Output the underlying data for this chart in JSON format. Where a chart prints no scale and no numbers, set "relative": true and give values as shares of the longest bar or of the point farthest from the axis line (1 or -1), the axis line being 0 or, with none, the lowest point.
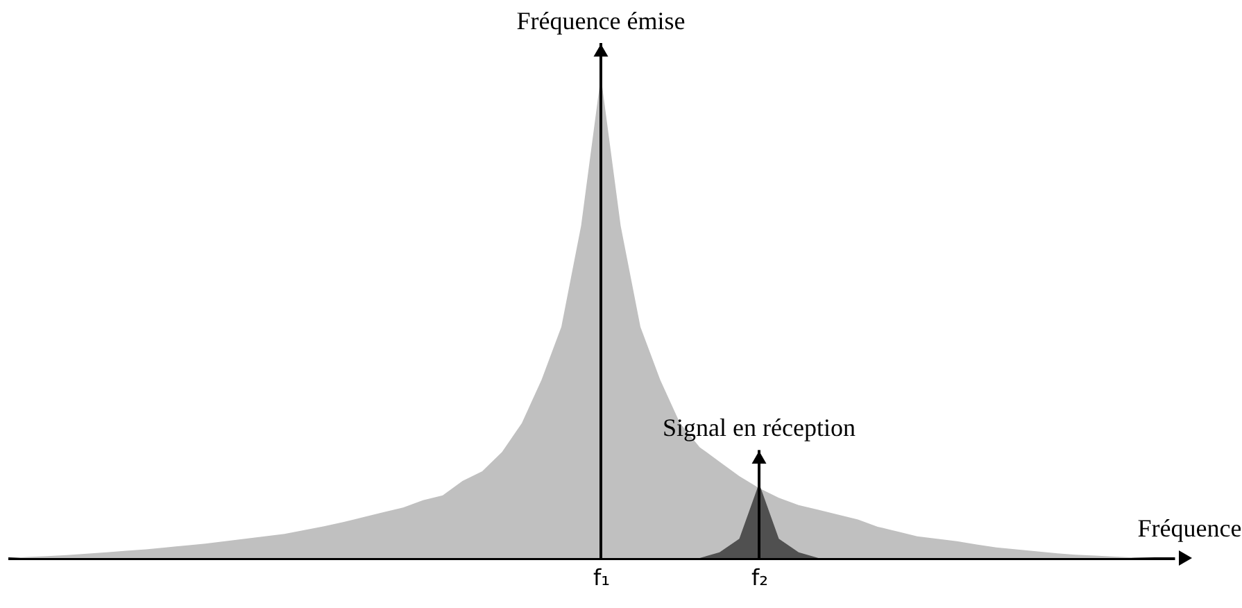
{
  "chart_data": {
    "type": "area",
    "relative": true,
    "xlabel": "Fréquence",
    "categories": [
      null,
      null,
      null,
      null,
      null,
      null,
      null,
      null,
      null,
      null,
      null,
      null,
      null,
      null,
      null,
      null,
      null,
      null,
      null,
      null,
      null,
      null,
      null,
      null,
      null,
      null,
      null,
      null,
      null,
      null,
      "f₁",
      null,
      null,
      null,
      null,
      null,
      null,
      null,
      "f₂",
      null,
      null,
      null,
      null,
      null,
      null,
      null,
      null,
      null,
      null,
      null,
      null,
      null,
      null,
      null,
      null,
      null,
      null,
      null,
      null,
      null
    ],
    "series": [
      {
        "color": "#c0c0c0",
        "values": [
          0,
          0.002,
          0.004,
          0.006,
          0.009,
          0.012,
          0.015,
          0.018,
          0.022,
          0.026,
          0.03,
          0.035,
          0.04,
          0.045,
          0.05,
          0.058,
          0.066,
          0.075,
          0.085,
          0.095,
          0.105,
          0.12,
          0.13,
          0.16,
          0.18,
          0.22,
          0.28,
          0.37,
          0.48,
          0.69,
          1,
          0.69,
          0.48,
          0.37,
          0.28,
          0.23,
          0.2,
          0.17,
          0.145,
          0.125,
          0.11,
          0.1,
          0.09,
          0.08,
          0.065,
          0.055,
          0.045,
          0.04,
          0.035,
          0.028,
          0.022,
          0.018,
          0.014,
          0.01,
          0.007,
          0.005,
          0.003,
          0.001,
          0,
          0
        ]
      },
      {
        "color": "#505050",
        "values": [
          null,
          null,
          null,
          null,
          null,
          null,
          null,
          null,
          null,
          null,
          null,
          null,
          null,
          null,
          null,
          null,
          null,
          null,
          null,
          null,
          null,
          null,
          null,
          null,
          null,
          null,
          null,
          null,
          null,
          null,
          null,
          null,
          null,
          null,
          null,
          0,
          0.012,
          0.04,
          0.155,
          0.04,
          0.012,
          0,
          null,
          null,
          null,
          null,
          null,
          null,
          null,
          null,
          null,
          null,
          null,
          null,
          null,
          null,
          null,
          null,
          null,
          null
        ]
      }
    ],
    "annotations": [
      {
        "text": "Fréquence émise",
        "x": "f₁",
        "y": 1
      },
      {
        "text": "Signal en réception",
        "x": "f₂",
        "y": 0.155
      }
    ]
  }
}
